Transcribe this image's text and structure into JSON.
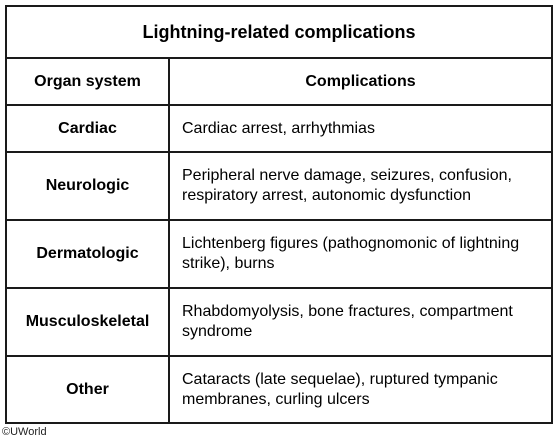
{
  "table": {
    "title": "Lightning-related complications",
    "headers": {
      "organ": "Organ system",
      "complications": "Complications"
    },
    "rows": [
      {
        "organ": "Cardiac",
        "complications": "Cardiac arrest, arrhythmias"
      },
      {
        "organ": "Neurologic",
        "complications": "Peripheral nerve damage, seizures, confusion, respiratory arrest, autonomic dysfunction"
      },
      {
        "organ": "Dermatologic",
        "complications": "Lichtenberg figures (pathognomonic of lightning strike), burns"
      },
      {
        "organ": "Musculoskeletal",
        "complications": "Rhabdomyolysis, bone fractures, compartment syndrome"
      },
      {
        "organ": "Other",
        "complications": "Cataracts (late sequelae), ruptured tympanic membranes, curling ulcers"
      }
    ]
  },
  "watermark": "©UWorld"
}
